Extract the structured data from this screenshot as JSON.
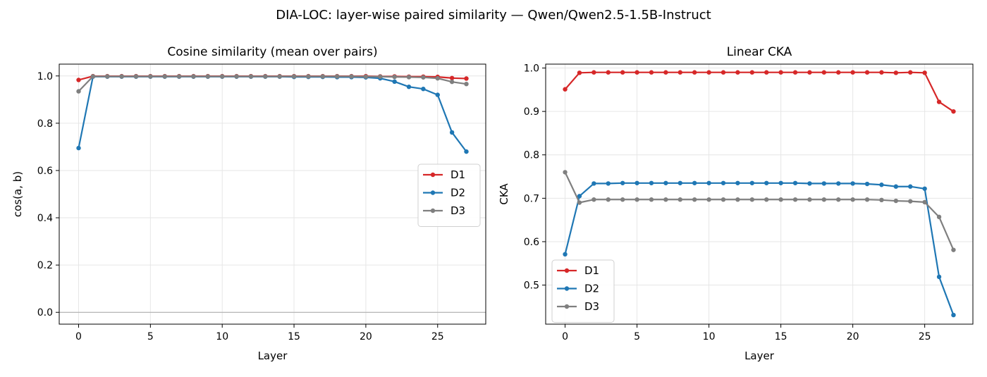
{
  "figure": {
    "suptitle": "DIA-LOC: layer-wise paired similarity — Qwen/Qwen2.5-1.5B-Instruct"
  },
  "chart_data": [
    {
      "type": "line",
      "title": "Cosine similarity (mean over pairs)",
      "xlabel": "Layer",
      "ylabel": "cos(a, b)",
      "xlim": [
        -1.35,
        28.35
      ],
      "ylim": [
        -0.05,
        1.05
      ],
      "xticks": [
        "0",
        "5",
        "10",
        "15",
        "20",
        "25"
      ],
      "yticks": [
        "0.0",
        "0.2",
        "0.4",
        "0.6",
        "0.8",
        "1.0"
      ],
      "grid": true,
      "zero_line": true,
      "legend_position": "center-right",
      "x": [
        0,
        1,
        2,
        3,
        4,
        5,
        6,
        7,
        8,
        9,
        10,
        11,
        12,
        13,
        14,
        15,
        16,
        17,
        18,
        19,
        20,
        21,
        22,
        23,
        24,
        25,
        26,
        27
      ],
      "series": [
        {
          "name": "D1",
          "color": "#d62728",
          "values": [
            0.983,
            0.999,
            0.999,
            0.999,
            0.999,
            0.999,
            0.999,
            0.999,
            0.999,
            0.999,
            0.999,
            0.999,
            0.999,
            0.999,
            0.999,
            0.999,
            0.999,
            0.999,
            0.999,
            0.999,
            0.999,
            0.998,
            0.998,
            0.997,
            0.997,
            0.996,
            0.991,
            0.989
          ]
        },
        {
          "name": "D2",
          "color": "#1f77b4",
          "values": [
            0.695,
            0.997,
            0.997,
            0.997,
            0.997,
            0.997,
            0.997,
            0.997,
            0.997,
            0.997,
            0.997,
            0.997,
            0.997,
            0.997,
            0.997,
            0.996,
            0.996,
            0.996,
            0.995,
            0.995,
            0.994,
            0.99,
            0.976,
            0.954,
            0.945,
            0.92,
            0.761,
            0.68
          ]
        },
        {
          "name": "D3",
          "color": "#7f7f7f",
          "values": [
            0.935,
            0.998,
            0.998,
            0.998,
            0.998,
            0.998,
            0.998,
            0.998,
            0.998,
            0.998,
            0.998,
            0.998,
            0.998,
            0.998,
            0.998,
            0.998,
            0.998,
            0.998,
            0.998,
            0.998,
            0.997,
            0.997,
            0.996,
            0.995,
            0.994,
            0.99,
            0.975,
            0.966
          ]
        }
      ]
    },
    {
      "type": "line",
      "title": "Linear CKA",
      "xlabel": "Layer",
      "ylabel": "CKA",
      "xlim": [
        -1.35,
        28.35
      ],
      "ylim": [
        0.41,
        1.009
      ],
      "xticks": [
        "0",
        "5",
        "10",
        "15",
        "20",
        "25"
      ],
      "yticks": [
        "0.5",
        "0.6",
        "0.7",
        "0.8",
        "0.9",
        "1.0"
      ],
      "grid": true,
      "zero_line": false,
      "legend_position": "lower-left",
      "x": [
        0,
        1,
        2,
        3,
        4,
        5,
        6,
        7,
        8,
        9,
        10,
        11,
        12,
        13,
        14,
        15,
        16,
        17,
        18,
        19,
        20,
        21,
        22,
        23,
        24,
        25,
        26,
        27
      ],
      "series": [
        {
          "name": "D1",
          "color": "#d62728",
          "values": [
            0.951,
            0.989,
            0.99,
            0.99,
            0.99,
            0.99,
            0.99,
            0.99,
            0.99,
            0.99,
            0.99,
            0.99,
            0.99,
            0.99,
            0.99,
            0.99,
            0.99,
            0.99,
            0.99,
            0.99,
            0.99,
            0.99,
            0.99,
            0.989,
            0.99,
            0.989,
            0.922,
            0.9
          ]
        },
        {
          "name": "D2",
          "color": "#1f77b4",
          "values": [
            0.571,
            0.705,
            0.734,
            0.734,
            0.735,
            0.735,
            0.735,
            0.735,
            0.735,
            0.735,
            0.735,
            0.735,
            0.735,
            0.735,
            0.735,
            0.735,
            0.735,
            0.734,
            0.734,
            0.734,
            0.734,
            0.733,
            0.731,
            0.727,
            0.727,
            0.722,
            0.519,
            0.431
          ]
        },
        {
          "name": "D3",
          "color": "#7f7f7f",
          "values": [
            0.76,
            0.69,
            0.697,
            0.697,
            0.697,
            0.697,
            0.697,
            0.697,
            0.697,
            0.697,
            0.697,
            0.697,
            0.697,
            0.697,
            0.697,
            0.697,
            0.697,
            0.697,
            0.697,
            0.697,
            0.697,
            0.697,
            0.696,
            0.694,
            0.693,
            0.691,
            0.657,
            0.581
          ]
        }
      ]
    }
  ]
}
